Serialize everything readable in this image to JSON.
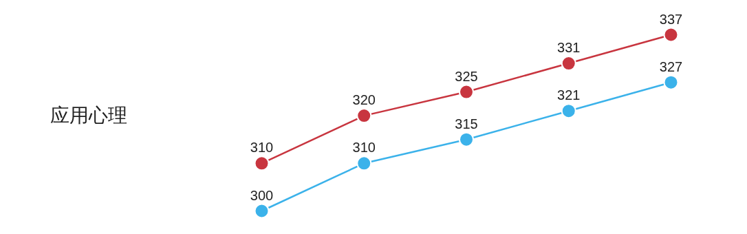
{
  "chart_data": {
    "type": "line",
    "title": "应用心理",
    "categories": [
      null,
      null,
      null,
      null,
      null
    ],
    "series": [
      {
        "color": "#c8353f",
        "values": [
          310,
          320,
          325,
          331,
          337
        ]
      },
      {
        "color": "#3bb2ea",
        "values": [
          300,
          310,
          315,
          321,
          327
        ]
      }
    ],
    "data_labels": true,
    "marker": "circle",
    "line_style": "solid",
    "grid": false
  }
}
